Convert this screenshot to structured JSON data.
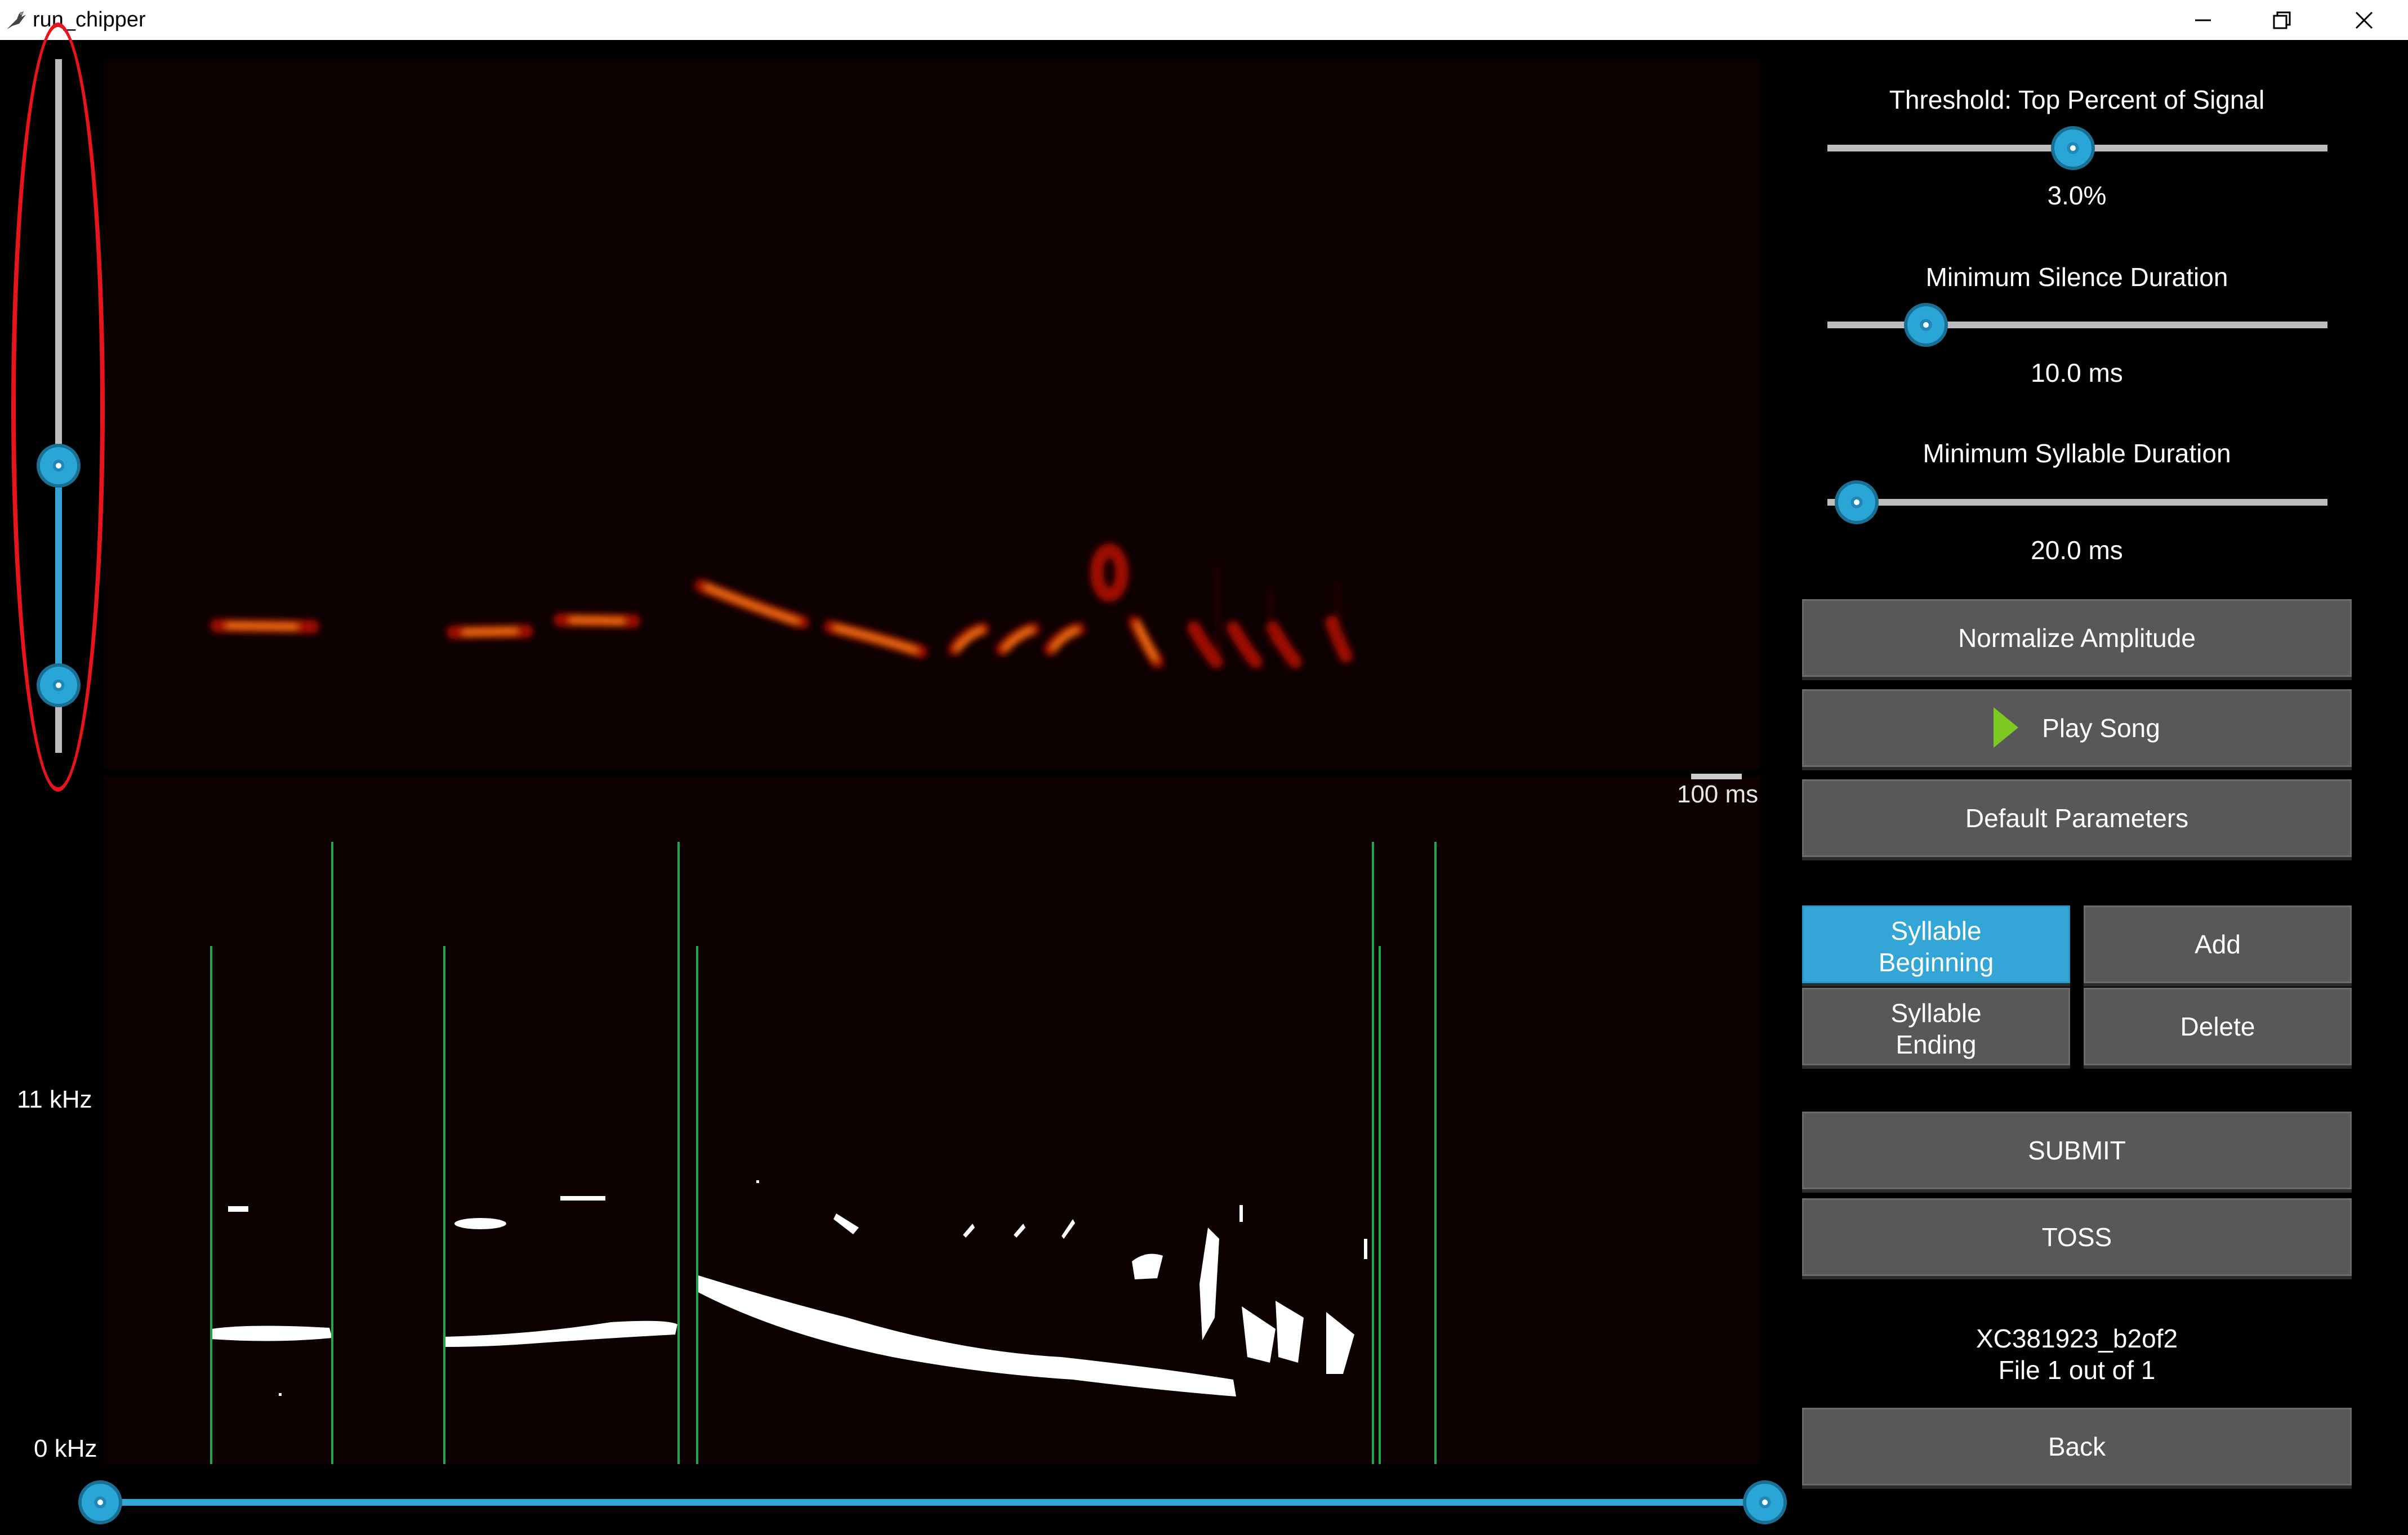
{
  "window": {
    "title": "run_chipper",
    "minimize_label": "—",
    "restore_label": "❐",
    "close_label": "✕"
  },
  "spectrogram": {
    "scale_bar_label": "100 ms",
    "freq_top_label": "11 kHz",
    "freq_bottom_label": "0 kHz"
  },
  "controls": {
    "threshold": {
      "label": "Threshold: Top Percent of Signal",
      "value": "3.0%",
      "fraction": 0.49
    },
    "min_silence": {
      "label": "Minimum Silence Duration",
      "value": "10.0 ms",
      "fraction": 0.19
    },
    "min_syllable": {
      "label": "Minimum Syllable Duration",
      "value": "20.0 ms",
      "fraction": 0.05
    }
  },
  "buttons": {
    "normalize": "Normalize Amplitude",
    "play": "Play Song",
    "defaults": "Default Parameters",
    "syllable_beginning_line1": "Syllable",
    "syllable_beginning_line2": "Beginning",
    "add": "Add",
    "syllable_ending_line1": "Syllable",
    "syllable_ending_line2": "Ending",
    "delete": "Delete",
    "submit": "SUBMIT",
    "toss": "TOSS",
    "back": "Back"
  },
  "file_info": {
    "name": "XC381923_b2of2",
    "progress": "File 1 out of 1"
  },
  "colors": {
    "accent": "#33a5d6",
    "button": "#585858",
    "marker": "#1fa84a",
    "highlight": "#e8141c"
  }
}
